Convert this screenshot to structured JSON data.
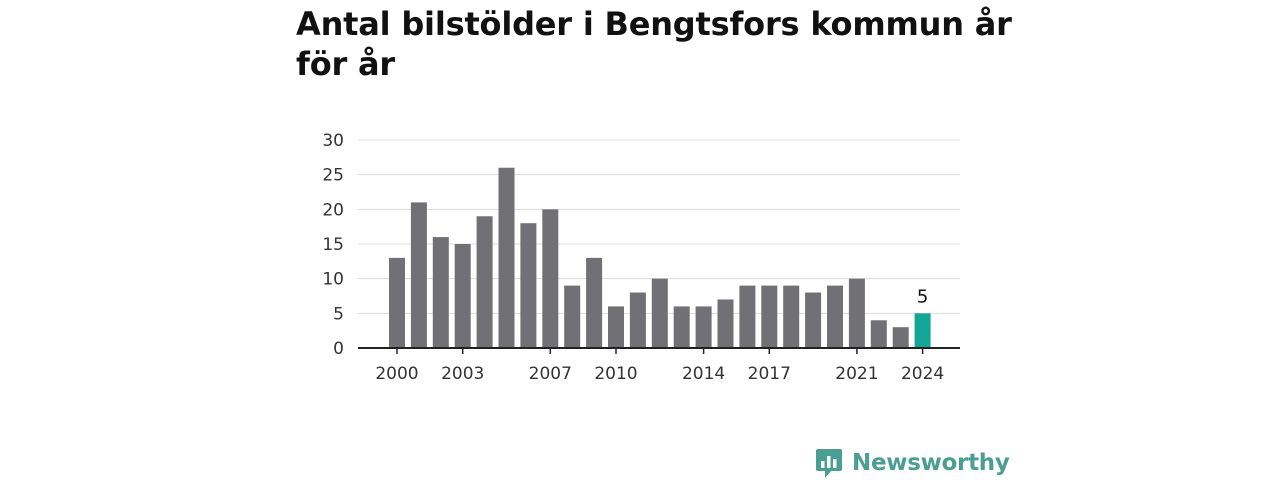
{
  "title": "Antal bilstölder i Bengtsfors kommun år för år",
  "brand": {
    "name": "Newsworthy",
    "icon": "newsworthy-logo-icon",
    "color": "#4a9e92"
  },
  "chart_data": {
    "type": "bar",
    "title": "Antal bilstölder i Bengtsfors kommun år för år",
    "xlabel": "",
    "ylabel": "",
    "categories": [
      "2000",
      "2001",
      "2002",
      "2003",
      "2004",
      "2005",
      "2006",
      "2007",
      "2008",
      "2009",
      "2010",
      "2011",
      "2012",
      "2013",
      "2014",
      "2015",
      "2016",
      "2017",
      "2018",
      "2019",
      "2020",
      "2021",
      "2022",
      "2023",
      "2024"
    ],
    "values": [
      13,
      21,
      16,
      15,
      19,
      26,
      18,
      20,
      9,
      13,
      6,
      8,
      10,
      6,
      6,
      7,
      9,
      9,
      9,
      8,
      9,
      10,
      4,
      3,
      5
    ],
    "x_tick_labels": [
      "2000",
      "2003",
      "2007",
      "2010",
      "2014",
      "2017",
      "2021",
      "2024"
    ],
    "y_ticks": [
      0,
      5,
      10,
      15,
      20,
      25,
      30
    ],
    "ylim": [
      0,
      30
    ],
    "grid": true,
    "legend": "none",
    "highlight": {
      "category": "2024",
      "label": "5"
    },
    "colors": {
      "bar": "#717074",
      "highlight": "#13a596",
      "grid": "#dddddd",
      "axis": "#222222"
    }
  }
}
